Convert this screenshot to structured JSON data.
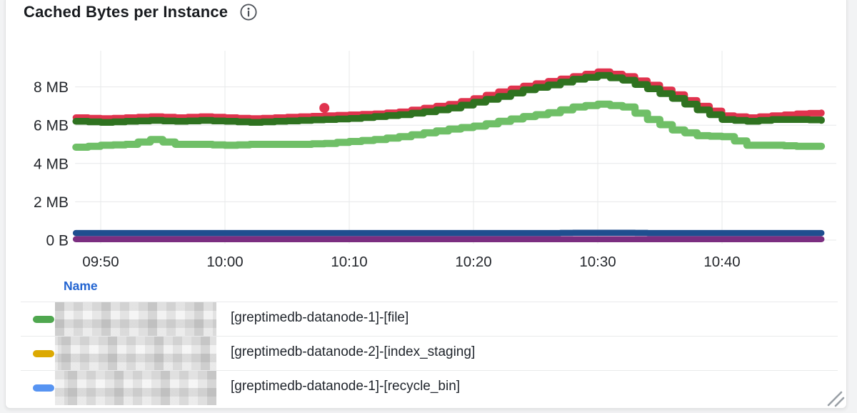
{
  "panel": {
    "title": "Cached Bytes per Instance",
    "info_icon": "info-circle-icon",
    "info_icon_color": "#4a4f56",
    "background": "#ffffff",
    "border_color": "#e2e3e4",
    "page_background": "#f2f3f4"
  },
  "chart_data": {
    "type": "line",
    "title": "Cached Bytes per Instance",
    "style": "stepped thick lines (Grafana time series, points rendering)",
    "grid": "on",
    "grid_color": "#e7e8ea",
    "axis_text_color": "#24272c",
    "x_ticks": [
      "09:50",
      "10:00",
      "10:10",
      "10:20",
      "10:30",
      "10:40"
    ],
    "y_ticks": [
      "0 B",
      "2 MB",
      "4 MB",
      "6 MB",
      "8 MB"
    ],
    "y_tick_values_mb": [
      0,
      2,
      4,
      6,
      8
    ],
    "ylabel": "",
    "xlabel": "",
    "ylim_mb": [
      0,
      9.8
    ],
    "x_range": [
      "09:48",
      "10:48"
    ],
    "times": [
      "09:48",
      "09:50",
      "09:52",
      "09:54",
      "09:56",
      "09:58",
      "10:00",
      "10:02",
      "10:04",
      "10:06",
      "10:08",
      "10:10",
      "10:12",
      "10:14",
      "10:16",
      "10:18",
      "10:20",
      "10:22",
      "10:24",
      "10:26",
      "10:28",
      "10:30",
      "10:32",
      "10:34",
      "10:36",
      "10:38",
      "10:40",
      "10:42",
      "10:44",
      "10:46",
      "10:48"
    ],
    "unit": "MB",
    "series": [
      {
        "key": "red",
        "color": "#e0334e",
        "width": 9,
        "values_mb": [
          6.4,
          6.35,
          6.4,
          6.45,
          6.4,
          6.45,
          6.4,
          6.35,
          6.4,
          6.45,
          6.5,
          6.55,
          6.6,
          6.7,
          6.9,
          7.1,
          7.4,
          7.75,
          8.05,
          8.3,
          8.55,
          8.8,
          8.55,
          8.1,
          7.6,
          7.0,
          6.5,
          6.4,
          6.5,
          6.6,
          6.65
        ]
      },
      {
        "key": "dark-green",
        "color": "#2f7220",
        "width": 9.5,
        "values_mb": [
          6.2,
          6.15,
          6.2,
          6.25,
          6.2,
          6.25,
          6.2,
          6.15,
          6.2,
          6.25,
          6.3,
          6.35,
          6.45,
          6.55,
          6.7,
          6.9,
          7.2,
          7.5,
          7.85,
          8.1,
          8.4,
          8.6,
          8.35,
          7.9,
          7.4,
          6.8,
          6.3,
          6.2,
          6.3,
          6.3,
          6.25
        ]
      },
      {
        "key": "light-green",
        "color": "#6fbf67",
        "width": 10,
        "values_mb": [
          4.85,
          4.95,
          5.0,
          5.25,
          5.0,
          5.0,
          4.95,
          5.0,
          5.0,
          5.0,
          5.05,
          5.15,
          5.25,
          5.4,
          5.6,
          5.8,
          5.95,
          6.2,
          6.45,
          6.65,
          6.95,
          7.1,
          6.95,
          6.3,
          5.75,
          5.45,
          5.4,
          4.95,
          4.95,
          4.9,
          4.9
        ]
      },
      {
        "key": "purple",
        "color": "#7b2e80",
        "width": 8.5,
        "values_mb": [
          0.05,
          0.05,
          0.05,
          0.05,
          0.05,
          0.05,
          0.05,
          0.05,
          0.05,
          0.05,
          0.05,
          0.05,
          0.05,
          0.05,
          0.05,
          0.05,
          0.05,
          0.05,
          0.05,
          0.05,
          0.05,
          0.05,
          0.05,
          0.05,
          0.05,
          0.05,
          0.05,
          0.05,
          0.05,
          0.05,
          0.05
        ]
      },
      {
        "key": "dark-blue",
        "color": "#1f4e8f",
        "width": 8.5,
        "values_mb": [
          0.37,
          0.37,
          0.37,
          0.37,
          0.37,
          0.37,
          0.37,
          0.37,
          0.37,
          0.37,
          0.37,
          0.37,
          0.37,
          0.37,
          0.37,
          0.37,
          0.37,
          0.37,
          0.37,
          0.37,
          0.38,
          0.38,
          0.38,
          0.37,
          0.37,
          0.37,
          0.37,
          0.37,
          0.37,
          0.37,
          0.37
        ]
      }
    ],
    "outlier": {
      "series": "red",
      "time": "10:08",
      "value_mb": 6.9,
      "color": "#e0334e"
    },
    "legend_position": "bottom-table"
  },
  "legend": {
    "header": "Name",
    "header_color": "#2264d1",
    "rows": [
      {
        "marker_color": "#4fa74f",
        "redacted_prefix": true,
        "label": "[greptimedb-datanode-1]-[file]"
      },
      {
        "marker_color": "#dca902",
        "redacted_prefix": true,
        "label": "[greptimedb-datanode-2]-[index_staging]"
      },
      {
        "marker_color": "#5794f2",
        "redacted_prefix": true,
        "label": "[greptimedb-datanode-1]-[recycle_bin]"
      }
    ]
  },
  "resize_handle": {
    "color": "#9aa0a6"
  }
}
